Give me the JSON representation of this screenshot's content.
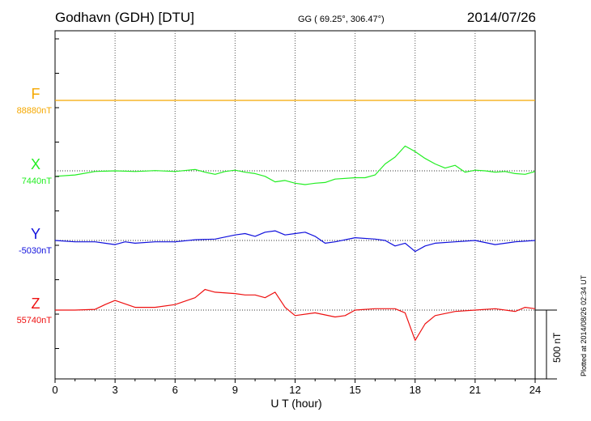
{
  "header": {
    "station": "Godhavn (GDH)  [DTU]",
    "coords": "GG ( 69.25°, 306.47°)",
    "date": "2014/07/26"
  },
  "plotted_note": "Plotted at 2014/08/26 02:34  UT",
  "scale_label": "500 nT",
  "chart_data": {
    "type": "line",
    "xlabel": "U T (hour)",
    "x_ticks": [
      0,
      3,
      6,
      9,
      12,
      15,
      18,
      21,
      24
    ],
    "xlim": [
      0,
      24
    ],
    "grid": true,
    "scale_bar_nT": 500,
    "series": [
      {
        "name": "F",
        "baseline_label": "88880nT",
        "color": "#f5a800",
        "points": [
          [
            0,
            0
          ],
          [
            6,
            0
          ],
          [
            12,
            0
          ],
          [
            18,
            0
          ],
          [
            24,
            0
          ]
        ]
      },
      {
        "name": "X",
        "baseline_label": "7440nT",
        "color": "#22ee22",
        "points": [
          [
            0,
            -40
          ],
          [
            1,
            -30
          ],
          [
            2,
            -5
          ],
          [
            3,
            0
          ],
          [
            4,
            -5
          ],
          [
            4.5,
            -2
          ],
          [
            5,
            2
          ],
          [
            6,
            -5
          ],
          [
            7,
            10
          ],
          [
            7.5,
            -10
          ],
          [
            8,
            -25
          ],
          [
            8.5,
            -5
          ],
          [
            9,
            5
          ],
          [
            9.5,
            -10
          ],
          [
            10,
            -20
          ],
          [
            10.5,
            -40
          ],
          [
            11,
            -80
          ],
          [
            11.5,
            -70
          ],
          [
            12,
            -90
          ],
          [
            12.5,
            -100
          ],
          [
            13,
            -90
          ],
          [
            13.5,
            -85
          ],
          [
            14,
            -60
          ],
          [
            15,
            -50
          ],
          [
            15.5,
            -50
          ],
          [
            16,
            -30
          ],
          [
            16.5,
            50
          ],
          [
            17,
            100
          ],
          [
            17.5,
            180
          ],
          [
            18,
            140
          ],
          [
            18.5,
            90
          ],
          [
            19,
            50
          ],
          [
            19.5,
            20
          ],
          [
            20,
            40
          ],
          [
            20.5,
            -10
          ],
          [
            21,
            5
          ],
          [
            21.5,
            0
          ],
          [
            22,
            -10
          ],
          [
            22.5,
            -5
          ],
          [
            23,
            -20
          ],
          [
            23.5,
            -25
          ],
          [
            24,
            -5
          ]
        ]
      },
      {
        "name": "Y",
        "baseline_label": "-5030nT",
        "color": "#1010dd",
        "points": [
          [
            0,
            0
          ],
          [
            1,
            -10
          ],
          [
            2,
            -10
          ],
          [
            3,
            -30
          ],
          [
            3.5,
            -10
          ],
          [
            4,
            -20
          ],
          [
            5,
            -10
          ],
          [
            6,
            -10
          ],
          [
            7,
            5
          ],
          [
            8,
            10
          ],
          [
            9,
            40
          ],
          [
            9.5,
            50
          ],
          [
            10,
            30
          ],
          [
            10.5,
            60
          ],
          [
            11,
            70
          ],
          [
            11.5,
            40
          ],
          [
            12,
            50
          ],
          [
            12.5,
            60
          ],
          [
            13,
            30
          ],
          [
            13.5,
            -20
          ],
          [
            14,
            -10
          ],
          [
            15,
            20
          ],
          [
            16,
            10
          ],
          [
            16.5,
            0
          ],
          [
            17,
            -40
          ],
          [
            17.5,
            -20
          ],
          [
            18,
            -80
          ],
          [
            18.5,
            -40
          ],
          [
            19,
            -20
          ],
          [
            20,
            -10
          ],
          [
            21,
            0
          ],
          [
            22,
            -30
          ],
          [
            23,
            -10
          ],
          [
            24,
            0
          ]
        ]
      },
      {
        "name": "Z",
        "baseline_label": "55740nT",
        "color": "#ee1010",
        "points": [
          [
            0,
            0
          ],
          [
            1,
            0
          ],
          [
            2,
            5
          ],
          [
            2.5,
            40
          ],
          [
            3,
            70
          ],
          [
            4,
            20
          ],
          [
            5,
            20
          ],
          [
            6,
            40
          ],
          [
            7,
            90
          ],
          [
            7.5,
            150
          ],
          [
            8,
            130
          ],
          [
            9,
            120
          ],
          [
            9.5,
            110
          ],
          [
            10,
            110
          ],
          [
            10.5,
            90
          ],
          [
            11,
            130
          ],
          [
            11.5,
            20
          ],
          [
            12,
            -40
          ],
          [
            13,
            -20
          ],
          [
            14,
            -50
          ],
          [
            14.5,
            -40
          ],
          [
            15,
            0
          ],
          [
            16,
            10
          ],
          [
            17,
            10
          ],
          [
            17.5,
            -20
          ],
          [
            18,
            -220
          ],
          [
            18.5,
            -100
          ],
          [
            19,
            -40
          ],
          [
            20,
            -10
          ],
          [
            21,
            0
          ],
          [
            22,
            10
          ],
          [
            23,
            -10
          ],
          [
            23.5,
            20
          ],
          [
            24,
            10
          ]
        ]
      }
    ]
  }
}
